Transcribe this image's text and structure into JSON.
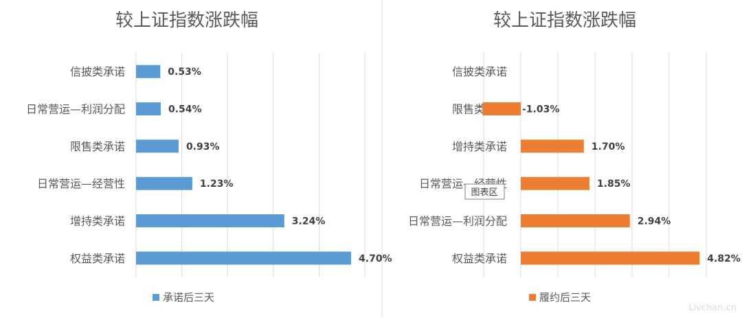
{
  "tooltip": "图表区",
  "watermark": "Livchan.cn",
  "chart_data": [
    {
      "type": "bar",
      "orientation": "horizontal",
      "title": "较上证指数涨跌幅",
      "categories": [
        "信披类承诺",
        "日常营运—利润分配",
        "限售类承诺",
        "日常营运—经营性",
        "增持类承诺",
        "权益类承诺"
      ],
      "series": [
        {
          "name": "承诺后三天",
          "values": [
            0.53,
            0.54,
            0.93,
            1.23,
            3.24,
            4.7
          ],
          "labels": [
            "0.53%",
            "0.54%",
            "0.93%",
            "1.23%",
            "3.24%",
            "4.70%"
          ]
        }
      ],
      "xlim": [
        0,
        5
      ],
      "unit": "%",
      "grid": true,
      "legend": "bottom",
      "color": "#5b9bd5"
    },
    {
      "type": "bar",
      "orientation": "horizontal",
      "title": "较上证指数涨跌幅",
      "categories": [
        "信披类承诺",
        "限售类承诺",
        "增持类承诺",
        "日常营运—经营性",
        "日常营运—利润分配",
        "权益类承诺"
      ],
      "series": [
        {
          "name": "履约后三天",
          "values": [
            null,
            -1.03,
            1.7,
            1.85,
            2.94,
            4.82
          ],
          "labels": [
            "",
            "-1.03%",
            "1.70%",
            "1.85%",
            "2.94%",
            "4.82%"
          ]
        }
      ],
      "xlim": [
        -1,
        5
      ],
      "unit": "%",
      "grid": true,
      "legend": "bottom",
      "color": "#ed7d31"
    }
  ]
}
